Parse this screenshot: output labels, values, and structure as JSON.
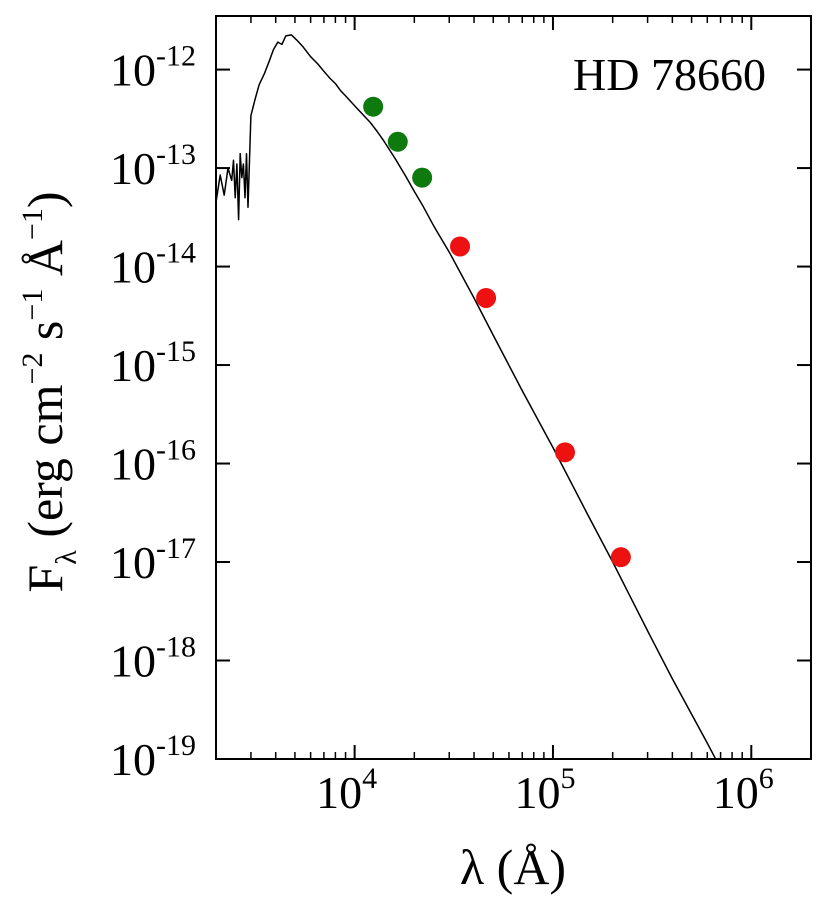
{
  "chart_data": {
    "type": "scatter",
    "title": "",
    "annotation": "HD 78660",
    "xlabel": "λ (Å)",
    "ylabel": "F_λ (erg cm^-2 s^-1 Å^-1)",
    "xscale": "log",
    "yscale": "log",
    "xlim": [
      2000,
      2000000
    ],
    "ylim": [
      1e-19,
      3.5e-12
    ],
    "x_ticks": [
      {
        "base": "10",
        "exp": "4",
        "value": 10000
      },
      {
        "base": "10",
        "exp": "5",
        "value": 100000
      },
      {
        "base": "10",
        "exp": "6",
        "value": 1000000
      }
    ],
    "y_ticks": [
      {
        "base": "10",
        "exp": "-12",
        "value": 1e-12
      },
      {
        "base": "10",
        "exp": "-13",
        "value": 1e-13
      },
      {
        "base": "10",
        "exp": "-14",
        "value": 1e-14
      },
      {
        "base": "10",
        "exp": "-15",
        "value": 1e-15
      },
      {
        "base": "10",
        "exp": "-16",
        "value": 1e-16
      },
      {
        "base": "10",
        "exp": "-17",
        "value": 1e-17
      },
      {
        "base": "10",
        "exp": "-18",
        "value": 1e-18
      },
      {
        "base": "10",
        "exp": "-19",
        "value": 1e-19
      }
    ],
    "grid": false,
    "series": [
      {
        "kind": "model-line",
        "color": "#000000",
        "x": [
          2000,
          2100,
          2200,
          2300,
          2400,
          2450,
          2500,
          2550,
          2600,
          2650,
          2700,
          2750,
          2800,
          2850,
          2900,
          3000,
          3150,
          3300,
          3500,
          3700,
          3900,
          4100,
          4300,
          4500,
          4800,
          5100,
          5500,
          6000,
          6500,
          7000,
          7500,
          8000,
          8500,
          9000,
          10000,
          11000,
          12000,
          13000,
          14000,
          16000,
          18000,
          20000,
          22000,
          25000,
          30000,
          40000,
          50000,
          70000,
          100000,
          150000,
          200000,
          300000,
          400000,
          600000,
          700000
        ],
        "y": [
          4.5e-14,
          8.5e-14,
          5.3e-14,
          1e-13,
          7.5e-14,
          1.2e-13,
          5e-14,
          1.1e-13,
          3e-14,
          1.4e-13,
          8e-14,
          1.1e-13,
          5e-14,
          1.4e-13,
          4e-14,
          3.4e-13,
          5e-13,
          7e-13,
          9e-13,
          1.2e-12,
          1.6e-12,
          1.9e-12,
          1.8e-12,
          2.2e-12,
          2.25e-12,
          2e-12,
          1.7e-12,
          1.35e-12,
          1.15e-12,
          9.6e-13,
          8.2e-13,
          7.2e-13,
          6.1e-13,
          5.4e-13,
          4.3e-13,
          3.5e-13,
          2.9e-13,
          2.35e-13,
          1.9e-13,
          1.25e-13,
          8.4e-14,
          5.8e-14,
          4.2e-14,
          2.6e-14,
          1.4e-14,
          4.8e-15,
          2e-15,
          5.5e-16,
          1.45e-16,
          3e-17,
          1e-17,
          2e-18,
          6.5e-19,
          1.45e-19,
          8e-20
        ]
      },
      {
        "kind": "points",
        "color": "#0e7a0d",
        "x": [
          12400,
          16500,
          21900
        ],
        "y": [
          4.2e-13,
          1.85e-13,
          8e-14
        ]
      },
      {
        "kind": "points",
        "color": "#ee1111",
        "x": [
          34000,
          46000,
          115000,
          220000
        ],
        "y": [
          1.6e-14,
          4.8e-15,
          1.3e-16,
          1.12e-17
        ]
      }
    ]
  }
}
